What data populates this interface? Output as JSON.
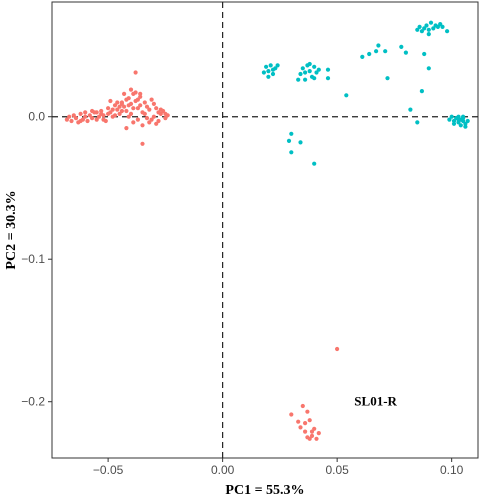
{
  "chart_data": {
    "type": "scatter",
    "xlabel": "PC1 = 55.3%",
    "ylabel": "PC2 = 30.3%",
    "xlim": [
      -0.0745,
      0.1115
    ],
    "ylim": [
      -0.2395,
      0.0805
    ],
    "x_ticks": [
      -0.05,
      0.0,
      0.05,
      0.1
    ],
    "x_tick_labels": [
      "−0.05",
      "0.00",
      "0.05",
      "0.10"
    ],
    "y_ticks": [
      0.0,
      -0.1,
      -0.2
    ],
    "y_tick_labels": [
      "0.0",
      "−0.1",
      "−0.2"
    ],
    "reference_lines": {
      "x": 0,
      "y": 0,
      "style": "dashed"
    },
    "grid": false,
    "legend": "none",
    "annotations": [
      {
        "text": "SL01-R",
        "x": 0.0575,
        "y": -0.2025
      }
    ],
    "series": [
      {
        "color": "#F8766D",
        "points": [
          [
            -0.068,
            -0.002
          ],
          [
            -0.067,
            0.0
          ],
          [
            -0.066,
            -0.003
          ],
          [
            -0.065,
            0.001
          ],
          [
            -0.064,
            -0.001
          ],
          [
            -0.063,
            -0.004
          ],
          [
            -0.062,
            0.002
          ],
          [
            -0.061,
            -0.002
          ],
          [
            -0.06,
            0.0
          ],
          [
            -0.059,
            -0.003
          ],
          [
            -0.058,
            0.001
          ],
          [
            -0.057,
            -0.001
          ],
          [
            -0.056,
            0.003
          ],
          [
            -0.055,
            -0.002
          ],
          [
            -0.054,
            0.0
          ],
          [
            -0.053,
            0.004
          ],
          [
            -0.052,
            0.001
          ],
          [
            -0.051,
            -0.003
          ],
          [
            -0.05,
            0.006
          ],
          [
            -0.049,
            0.003
          ],
          [
            -0.048,
            0.0
          ],
          [
            -0.047,
            0.008
          ],
          [
            -0.046,
            0.005
          ],
          [
            -0.045,
            0.002
          ],
          [
            -0.044,
            0.01
          ],
          [
            -0.043,
            0.007
          ],
          [
            -0.042,
            0.004
          ],
          [
            -0.041,
            0.013
          ],
          [
            -0.04,
            0.009
          ],
          [
            -0.039,
            0.016
          ],
          [
            -0.038,
            0.011
          ],
          [
            -0.037,
            0.006
          ],
          [
            -0.036,
            0.014
          ],
          [
            -0.035,
            0.003
          ],
          [
            -0.034,
            0.01
          ],
          [
            -0.033,
            -0.001
          ],
          [
            -0.032,
            0.005
          ],
          [
            -0.031,
            0.012
          ],
          [
            -0.03,
            0.0
          ],
          [
            -0.029,
            0.006
          ],
          [
            -0.028,
            -0.003
          ],
          [
            -0.027,
            0.002
          ],
          [
            -0.026,
            0.004
          ],
          [
            -0.025,
            -0.001
          ],
          [
            -0.024,
            0.001
          ],
          [
            -0.046,
            0.01
          ],
          [
            -0.044,
            0.004
          ],
          [
            -0.042,
            0.012
          ],
          [
            -0.04,
            0.002
          ],
          [
            -0.038,
            0.017
          ],
          [
            -0.036,
            0.008
          ],
          [
            -0.034,
            0.002
          ],
          [
            -0.032,
            -0.004
          ],
          [
            -0.03,
            0.009
          ],
          [
            -0.028,
            0.003
          ],
          [
            -0.041,
            0.0
          ],
          [
            -0.039,
            -0.004
          ],
          [
            -0.037,
            -0.002
          ],
          [
            -0.035,
            -0.006
          ],
          [
            -0.049,
            0.011
          ],
          [
            -0.047,
            0.001
          ],
          [
            -0.043,
            0.016
          ],
          [
            -0.045,
            0.007
          ],
          [
            -0.053,
            0.002
          ],
          [
            -0.057,
            0.004
          ],
          [
            -0.033,
            0.007
          ],
          [
            -0.031,
            -0.002
          ],
          [
            -0.027,
            0.005
          ],
          [
            -0.025,
            0.002
          ],
          [
            -0.029,
            -0.005
          ],
          [
            -0.038,
            0.031
          ],
          [
            -0.035,
            -0.019
          ],
          [
            -0.042,
            -0.008
          ],
          [
            -0.04,
            0.019
          ],
          [
            -0.036,
            0.016
          ],
          [
            -0.039,
            0.006
          ],
          [
            -0.041,
            0.008
          ],
          [
            -0.037,
            0.012
          ],
          [
            -0.044,
            0.009
          ],
          [
            -0.048,
            0.005
          ],
          [
            -0.05,
            0.002
          ],
          [
            -0.052,
            -0.002
          ],
          [
            -0.055,
            0.003
          ],
          [
            -0.06,
            0.003
          ],
          [
            -0.062,
            -0.003
          ],
          [
            0.05,
            -0.163
          ],
          [
            0.03,
            -0.209
          ],
          [
            0.033,
            -0.214
          ],
          [
            0.035,
            -0.203
          ],
          [
            0.034,
            -0.218
          ],
          [
            0.037,
            -0.207
          ],
          [
            0.036,
            -0.221
          ],
          [
            0.038,
            -0.213
          ],
          [
            0.039,
            -0.224
          ],
          [
            0.04,
            -0.219
          ],
          [
            0.041,
            -0.226
          ],
          [
            0.042,
            -0.222
          ],
          [
            0.037,
            -0.225
          ],
          [
            0.036,
            -0.215
          ],
          [
            0.039,
            -0.221
          ],
          [
            0.038,
            -0.226
          ]
        ]
      },
      {
        "color": "#00BFC4",
        "points": [
          [
            0.018,
            0.031
          ],
          [
            0.019,
            0.035
          ],
          [
            0.02,
            0.032
          ],
          [
            0.021,
            0.036
          ],
          [
            0.022,
            0.03
          ],
          [
            0.023,
            0.034
          ],
          [
            0.024,
            0.036
          ],
          [
            0.02,
            0.028
          ],
          [
            0.022,
            0.033
          ],
          [
            0.034,
            0.03
          ],
          [
            0.035,
            0.034
          ],
          [
            0.036,
            0.031
          ],
          [
            0.037,
            0.036
          ],
          [
            0.038,
            0.032
          ],
          [
            0.039,
            0.028
          ],
          [
            0.04,
            0.035
          ],
          [
            0.041,
            0.031
          ],
          [
            0.042,
            0.033
          ],
          [
            0.036,
            0.026
          ],
          [
            0.038,
            0.037
          ],
          [
            0.033,
            0.026
          ],
          [
            0.04,
            0.027
          ],
          [
            0.046,
            0.027
          ],
          [
            0.046,
            0.033
          ],
          [
            0.054,
            0.015
          ],
          [
            0.061,
            0.042
          ],
          [
            0.064,
            0.044
          ],
          [
            0.067,
            0.046
          ],
          [
            0.068,
            0.05
          ],
          [
            0.071,
            0.046
          ],
          [
            0.072,
            0.027
          ],
          [
            0.078,
            0.049
          ],
          [
            0.08,
            0.045
          ],
          [
            0.082,
            0.005
          ],
          [
            0.088,
            0.044
          ],
          [
            0.09,
            0.034
          ],
          [
            0.087,
            0.018
          ],
          [
            0.085,
            -0.004
          ],
          [
            0.085,
            0.061
          ],
          [
            0.086,
            0.063
          ],
          [
            0.087,
            0.06
          ],
          [
            0.088,
            0.062
          ],
          [
            0.089,
            0.064
          ],
          [
            0.09,
            0.061
          ],
          [
            0.091,
            0.066
          ],
          [
            0.092,
            0.062
          ],
          [
            0.093,
            0.064
          ],
          [
            0.094,
            0.063
          ],
          [
            0.095,
            0.065
          ],
          [
            0.096,
            0.063
          ],
          [
            0.098,
            0.06
          ],
          [
            0.09,
            0.058
          ],
          [
            0.099,
            -0.002
          ],
          [
            0.1,
            0.0
          ],
          [
            0.101,
            -0.003
          ],
          [
            0.102,
            -0.001
          ],
          [
            0.103,
            -0.004
          ],
          [
            0.104,
            -0.002
          ],
          [
            0.105,
            -0.003
          ],
          [
            0.106,
            -0.005
          ],
          [
            0.103,
            0.0
          ],
          [
            0.104,
            -0.006
          ],
          [
            0.105,
            -0.001
          ],
          [
            0.107,
            -0.003
          ],
          [
            0.101,
            -0.005
          ],
          [
            0.106,
            -0.007
          ],
          [
            0.103,
            -0.002
          ],
          [
            0.105,
            0.0
          ],
          [
            0.03,
            -0.012
          ],
          [
            0.029,
            -0.017
          ],
          [
            0.03,
            -0.025
          ],
          [
            0.034,
            -0.018
          ],
          [
            0.04,
            -0.033
          ]
        ]
      }
    ]
  }
}
